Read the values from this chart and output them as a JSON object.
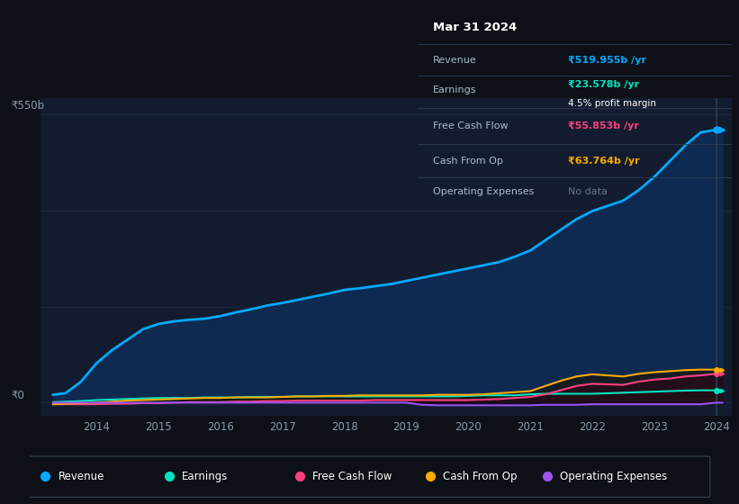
{
  "background_color": "#0d1117",
  "chart_bg_color": "#131c2e",
  "years": [
    2013.3,
    2013.5,
    2013.75,
    2014.0,
    2014.25,
    2014.5,
    2014.75,
    2015.0,
    2015.25,
    2015.5,
    2015.75,
    2016.0,
    2016.25,
    2016.5,
    2016.75,
    2017.0,
    2017.25,
    2017.5,
    2017.75,
    2018.0,
    2018.25,
    2018.5,
    2018.75,
    2019.0,
    2019.25,
    2019.5,
    2019.75,
    2020.0,
    2020.25,
    2020.5,
    2020.75,
    2021.0,
    2021.25,
    2021.5,
    2021.75,
    2022.0,
    2022.25,
    2022.5,
    2022.75,
    2023.0,
    2023.25,
    2023.5,
    2023.75,
    2024.0,
    2024.1
  ],
  "revenue": [
    15,
    18,
    40,
    75,
    100,
    120,
    140,
    150,
    155,
    158,
    160,
    165,
    172,
    178,
    185,
    190,
    196,
    202,
    208,
    215,
    218,
    222,
    226,
    232,
    238,
    244,
    250,
    256,
    262,
    268,
    278,
    290,
    310,
    330,
    350,
    365,
    375,
    385,
    405,
    430,
    460,
    490,
    515,
    520,
    520
  ],
  "earnings": [
    1,
    2,
    3,
    5,
    6,
    7,
    8,
    9,
    9,
    9,
    10,
    10,
    10,
    11,
    11,
    11,
    12,
    12,
    12,
    12,
    12,
    12,
    12,
    12,
    12,
    12,
    12,
    13,
    14,
    14,
    14,
    16,
    17,
    17,
    17,
    17,
    18,
    19,
    20,
    21,
    22,
    23,
    23.5,
    23.5,
    23.5
  ],
  "free_cash_flow": [
    -3,
    -3,
    -3,
    -3,
    -2,
    -2,
    -1,
    -1,
    0,
    1,
    1,
    1,
    2,
    2,
    3,
    3,
    4,
    4,
    4,
    4,
    4,
    5,
    5,
    5,
    5,
    5,
    5,
    5,
    6,
    7,
    9,
    11,
    16,
    24,
    32,
    36,
    35,
    34,
    40,
    44,
    46,
    50,
    52,
    55,
    55
  ],
  "cash_from_op": [
    -3,
    -2,
    -1,
    0,
    2,
    4,
    5,
    6,
    7,
    8,
    9,
    9,
    10,
    10,
    10,
    11,
    12,
    12,
    13,
    13,
    14,
    14,
    14,
    14,
    14,
    15,
    15,
    15,
    16,
    18,
    20,
    22,
    32,
    42,
    50,
    54,
    52,
    50,
    55,
    58,
    60,
    62,
    63,
    63,
    63
  ],
  "operating_expenses": [
    0,
    0,
    0,
    0,
    0,
    0,
    0,
    0,
    0,
    0,
    0,
    0,
    0,
    0,
    0,
    0,
    0,
    0,
    0,
    0,
    0,
    0,
    0,
    0,
    -4,
    -5,
    -5,
    -5,
    -5,
    -5,
    -5,
    -5,
    -4,
    -4,
    -4,
    -3,
    -3,
    -3,
    -3,
    -3,
    -3,
    -3,
    -3,
    0,
    0
  ],
  "revenue_color": "#00aaff",
  "earnings_color": "#00e5c0",
  "free_cash_flow_color": "#ff4080",
  "cash_from_op_color": "#ffaa00",
  "operating_expenses_color": "#9955ee",
  "revenue_fill_color": "#0e2a50",
  "ylabel_550": "₹550b",
  "ylabel_0": "₹0",
  "xlim_min": 2013.1,
  "xlim_max": 2024.25,
  "ylim_min": -25,
  "ylim_max": 580,
  "grid_color": "#1e2d45",
  "tick_color": "#8899aa",
  "tooltip_bg": "#000000",
  "tooltip_title": "Mar 31 2024",
  "tooltip_revenue_label": "Revenue",
  "tooltip_revenue_value": "₹519.955b /yr",
  "tooltip_revenue_color": "#00aaff",
  "tooltip_earnings_label": "Earnings",
  "tooltip_earnings_value": "₹23.578b /yr",
  "tooltip_earnings_color": "#00e5c0",
  "tooltip_margin": "4.5% profit margin",
  "tooltip_fcf_label": "Free Cash Flow",
  "tooltip_fcf_value": "₹55.853b /yr",
  "tooltip_fcf_color": "#ff4080",
  "tooltip_cfo_label": "Cash From Op",
  "tooltip_cfo_value": "₹63.764b /yr",
  "tooltip_cfo_color": "#ffaa00",
  "tooltip_opex_label": "Operating Expenses",
  "tooltip_opex_value": "No data",
  "legend_items": [
    "Revenue",
    "Earnings",
    "Free Cash Flow",
    "Cash From Op",
    "Operating Expenses"
  ],
  "legend_colors": [
    "#00aaff",
    "#00e5c0",
    "#ff4080",
    "#ffaa00",
    "#9955ee"
  ]
}
